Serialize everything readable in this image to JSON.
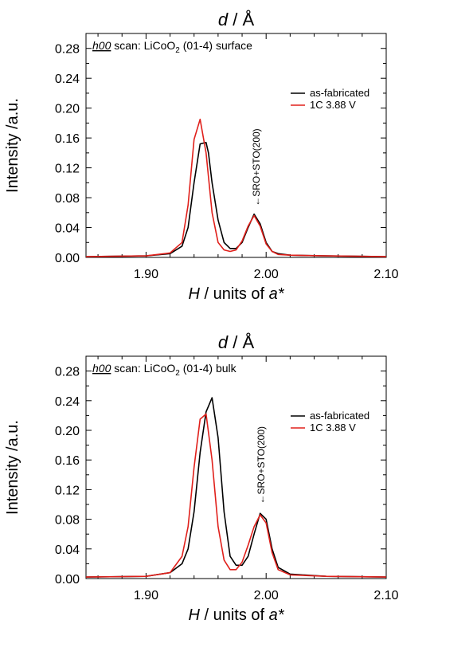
{
  "chart_data": [
    {
      "type": "line",
      "top_label": {
        "italic": "d",
        "rest": " / Å"
      },
      "annotation": {
        "scan": "h00",
        "scan_suffix": " scan: ",
        "material": "LiCoO",
        "subscript": "2",
        "plane": " (01-4) surface"
      },
      "xlabel": {
        "italic": "H",
        "middle": " / units of ",
        "italic2": "a*"
      },
      "ylabel": "Intensity /a.u.",
      "xlim": [
        1.85,
        2.1
      ],
      "ylim": [
        0,
        0.3
      ],
      "xticks": [
        1.9,
        2.0,
        2.1
      ],
      "xtick_labels": [
        "1.90",
        "2.00",
        "2.10"
      ],
      "yticks": [
        0.0,
        0.04,
        0.08,
        0.12,
        0.16,
        0.2,
        0.24,
        0.28
      ],
      "ytick_labels": [
        "0.00",
        "0.04",
        "0.08",
        "0.12",
        "0.16",
        "0.20",
        "0.24",
        "0.28"
      ],
      "peak_label": {
        "x": 1.992,
        "y": 0.06,
        "text": "SRO+STO(200)"
      },
      "legend_position": "right",
      "series": [
        {
          "name": "as-fabricated",
          "color": "#000000",
          "x": [
            1.85,
            1.9,
            1.92,
            1.93,
            1.935,
            1.94,
            1.945,
            1.95,
            1.952,
            1.955,
            1.96,
            1.965,
            1.97,
            1.975,
            1.98,
            1.985,
            1.99,
            1.995,
            2.0,
            2.005,
            2.01,
            2.02,
            2.05,
            2.1
          ],
          "y": [
            0.001,
            0.002,
            0.005,
            0.015,
            0.04,
            0.1,
            0.152,
            0.154,
            0.14,
            0.1,
            0.05,
            0.02,
            0.012,
            0.012,
            0.02,
            0.04,
            0.058,
            0.045,
            0.02,
            0.008,
            0.005,
            0.003,
            0.002,
            0.001
          ]
        },
        {
          "name": "1C 3.88 V",
          "color": "#e0201b",
          "x": [
            1.85,
            1.9,
            1.92,
            1.93,
            1.935,
            1.94,
            1.945,
            1.95,
            1.955,
            1.96,
            1.965,
            1.97,
            1.975,
            1.98,
            1.985,
            1.99,
            1.995,
            2.0,
            2.005,
            2.01,
            2.02,
            2.05,
            2.1
          ],
          "y": [
            0.001,
            0.002,
            0.006,
            0.02,
            0.07,
            0.158,
            0.185,
            0.14,
            0.06,
            0.02,
            0.01,
            0.008,
            0.01,
            0.022,
            0.042,
            0.056,
            0.042,
            0.018,
            0.008,
            0.004,
            0.003,
            0.002,
            0.001
          ]
        }
      ]
    },
    {
      "type": "line",
      "top_label": {
        "italic": "d",
        "rest": " / Å"
      },
      "annotation": {
        "scan": "h00",
        "scan_suffix": " scan: ",
        "material": "LiCoO",
        "subscript": "2",
        "plane": " (01-4) bulk"
      },
      "xlabel": {
        "italic": "H",
        "middle": " / units of ",
        "italic2": "a*"
      },
      "ylabel": "Intensity /a.u.",
      "xlim": [
        1.85,
        2.1
      ],
      "ylim": [
        0,
        0.3
      ],
      "xticks": [
        1.9,
        2.0,
        2.1
      ],
      "xtick_labels": [
        "1.90",
        "2.00",
        "2.10"
      ],
      "yticks": [
        0.0,
        0.04,
        0.08,
        0.12,
        0.16,
        0.2,
        0.24,
        0.28
      ],
      "ytick_labels": [
        "0.00",
        "0.04",
        "0.08",
        "0.12",
        "0.16",
        "0.20",
        "0.24",
        "0.28"
      ],
      "peak_label": {
        "x": 1.996,
        "y": 0.092,
        "text": "SRO+STO(200)"
      },
      "legend_position": "right",
      "series": [
        {
          "name": "as-fabricated",
          "color": "#000000",
          "x": [
            1.85,
            1.9,
            1.92,
            1.93,
            1.935,
            1.94,
            1.945,
            1.95,
            1.955,
            1.96,
            1.965,
            1.97,
            1.975,
            1.98,
            1.985,
            1.99,
            1.995,
            2.0,
            2.005,
            2.01,
            2.02,
            2.05,
            2.1
          ],
          "y": [
            0.002,
            0.003,
            0.008,
            0.02,
            0.04,
            0.09,
            0.17,
            0.225,
            0.244,
            0.19,
            0.09,
            0.03,
            0.018,
            0.018,
            0.03,
            0.06,
            0.088,
            0.08,
            0.04,
            0.015,
            0.006,
            0.003,
            0.002
          ]
        },
        {
          "name": "1C 3.88 V",
          "color": "#e0201b",
          "x": [
            1.85,
            1.9,
            1.92,
            1.93,
            1.935,
            1.94,
            1.945,
            1.95,
            1.955,
            1.96,
            1.965,
            1.97,
            1.975,
            1.98,
            1.985,
            1.99,
            1.995,
            2.0,
            2.005,
            2.01,
            2.02,
            2.05,
            2.1
          ],
          "y": [
            0.002,
            0.003,
            0.008,
            0.03,
            0.07,
            0.15,
            0.215,
            0.222,
            0.16,
            0.07,
            0.025,
            0.012,
            0.012,
            0.022,
            0.045,
            0.07,
            0.086,
            0.075,
            0.035,
            0.012,
            0.005,
            0.003,
            0.002
          ]
        }
      ]
    }
  ]
}
